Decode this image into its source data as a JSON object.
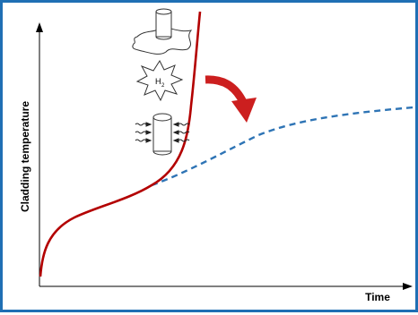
{
  "diagram": {
    "y_axis_label": "Cladding temperature",
    "x_axis_label": "Time",
    "hydrogen_label": "H",
    "hydrogen_subscript": "2"
  },
  "colors": {
    "border": "#1f6fb4",
    "red_curve": "#b30000",
    "dashed_curve": "#2e74b5",
    "arrow": "#cc1f1f"
  },
  "icons": [
    "melted-fuel-rod-icon",
    "hydrogen-explosion-icon",
    "heated-fuel-rod-icon",
    "curved-arrow-icon"
  ]
}
